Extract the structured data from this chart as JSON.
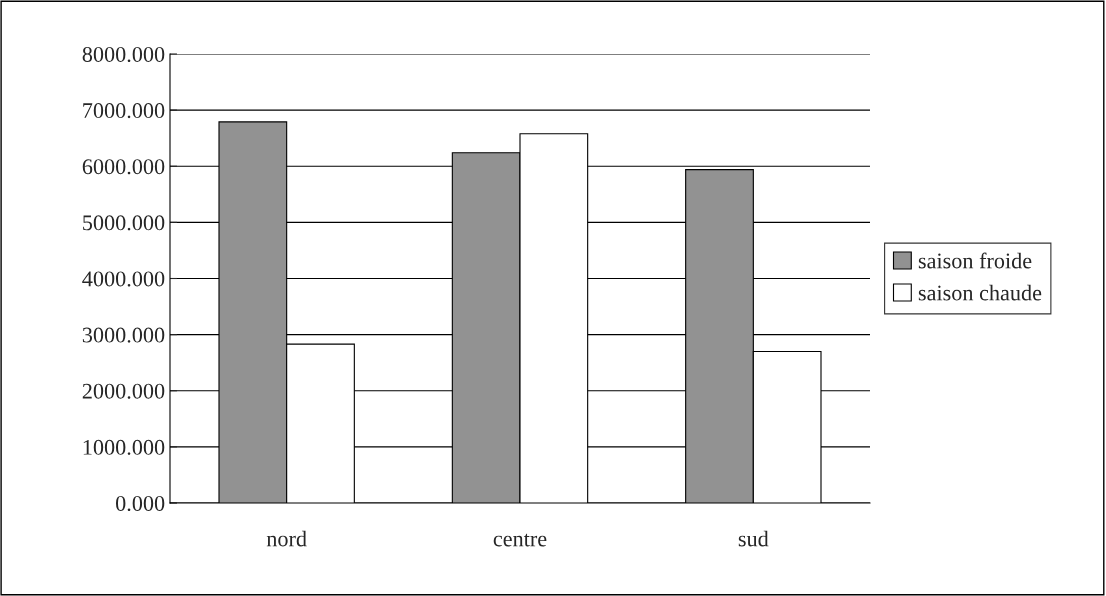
{
  "chart_data": {
    "type": "bar",
    "categories": [
      "nord",
      "centre",
      "sud"
    ],
    "series": [
      {
        "name": "saison froide",
        "color": "#929292",
        "values": [
          6790,
          6240,
          5940
        ]
      },
      {
        "name": "saison chaude",
        "color": "#ffffff",
        "values": [
          2830,
          6580,
          2700
        ]
      }
    ],
    "ylim": [
      0,
      8000
    ],
    "yticks": [
      {
        "value": 0,
        "label": "0.000"
      },
      {
        "value": 1000,
        "label": "1000.000"
      },
      {
        "value": 2000,
        "label": "2000.000"
      },
      {
        "value": 3000,
        "label": "3000.000"
      },
      {
        "value": 4000,
        "label": "4000.000"
      },
      {
        "value": 5000,
        "label": "5000.000"
      },
      {
        "value": 6000,
        "label": "6000.000"
      },
      {
        "value": 7000,
        "label": "7000.000"
      },
      {
        "value": 8000,
        "label": "8000.000"
      }
    ],
    "grid": "y",
    "legend": "right"
  }
}
